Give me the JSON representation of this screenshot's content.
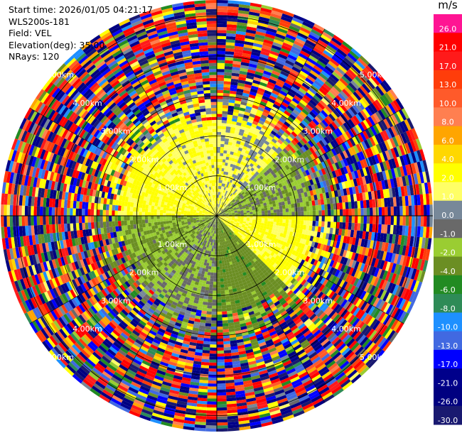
{
  "header": {
    "start_time": "Start time: 2026/01/05 04:21:17",
    "instrument": "WLS200s-181",
    "field": "Field: VEL",
    "elevation": "Elevation(deg): 35.00",
    "nrays": "NRays: 120"
  },
  "colorbar": {
    "unit": "m/s",
    "levels": [
      {
        "label": "26.0",
        "color": "#ff1493"
      },
      {
        "label": "21.0",
        "color": "#ff0000"
      },
      {
        "label": "17.0",
        "color": "#ff1a1a"
      },
      {
        "label": "13.0",
        "color": "#ff3d0a"
      },
      {
        "label": "10.0",
        "color": "#ff5a2a"
      },
      {
        "label": "8.0",
        "color": "#ff7f50"
      },
      {
        "label": "6.0",
        "color": "#ffa500"
      },
      {
        "label": "4.0",
        "color": "#ffd700"
      },
      {
        "label": "2.0",
        "color": "#ffff00"
      },
      {
        "label": "1.0",
        "color": "#ffff66"
      },
      {
        "label": "0.0",
        "color": "#778899"
      },
      {
        "label": "-1.0",
        "color": "#696969"
      },
      {
        "label": "-2.0",
        "color": "#9acd32"
      },
      {
        "label": "-4.0",
        "color": "#6b8e23"
      },
      {
        "label": "-6.0",
        "color": "#228b22"
      },
      {
        "label": "-8.0",
        "color": "#2e8b57"
      },
      {
        "label": "-10.0",
        "color": "#1e90ff"
      },
      {
        "label": "-13.0",
        "color": "#4169e1"
      },
      {
        "label": "-17.0",
        "color": "#0000ff"
      },
      {
        "label": "-21.0",
        "color": "#00008b"
      },
      {
        "label": "-26.0",
        "color": "#000080"
      },
      {
        "label": "-30.0",
        "color": "#191970"
      }
    ]
  },
  "chart_data": {
    "type": "heatmap",
    "projection": "polar-ppi",
    "field": "VEL",
    "units": "m/s",
    "max_range_km": 5.4,
    "range_ring_labels": [
      "1.00km",
      "2.00km",
      "3.00km",
      "4.00km",
      "5.00km"
    ],
    "nrays": 120,
    "azimuth_sectors": [
      {
        "az_start": 0,
        "az_end": 45,
        "near_velocity": 1.5
      },
      {
        "az_start": 45,
        "az_end": 90,
        "near_velocity": -1.5
      },
      {
        "az_start": 90,
        "az_end": 135,
        "near_velocity": 2.5
      },
      {
        "az_start": 135,
        "az_end": 180,
        "near_velocity": -3
      },
      {
        "az_start": 180,
        "az_end": 225,
        "near_velocity": -1
      },
      {
        "az_start": 225,
        "az_end": 270,
        "near_velocity": -2
      },
      {
        "az_start": 270,
        "az_end": 315,
        "near_velocity": 2.5
      },
      {
        "az_start": 315,
        "az_end": 360,
        "near_velocity": 2
      }
    ],
    "cbar_range": [
      -30,
      26
    ]
  }
}
